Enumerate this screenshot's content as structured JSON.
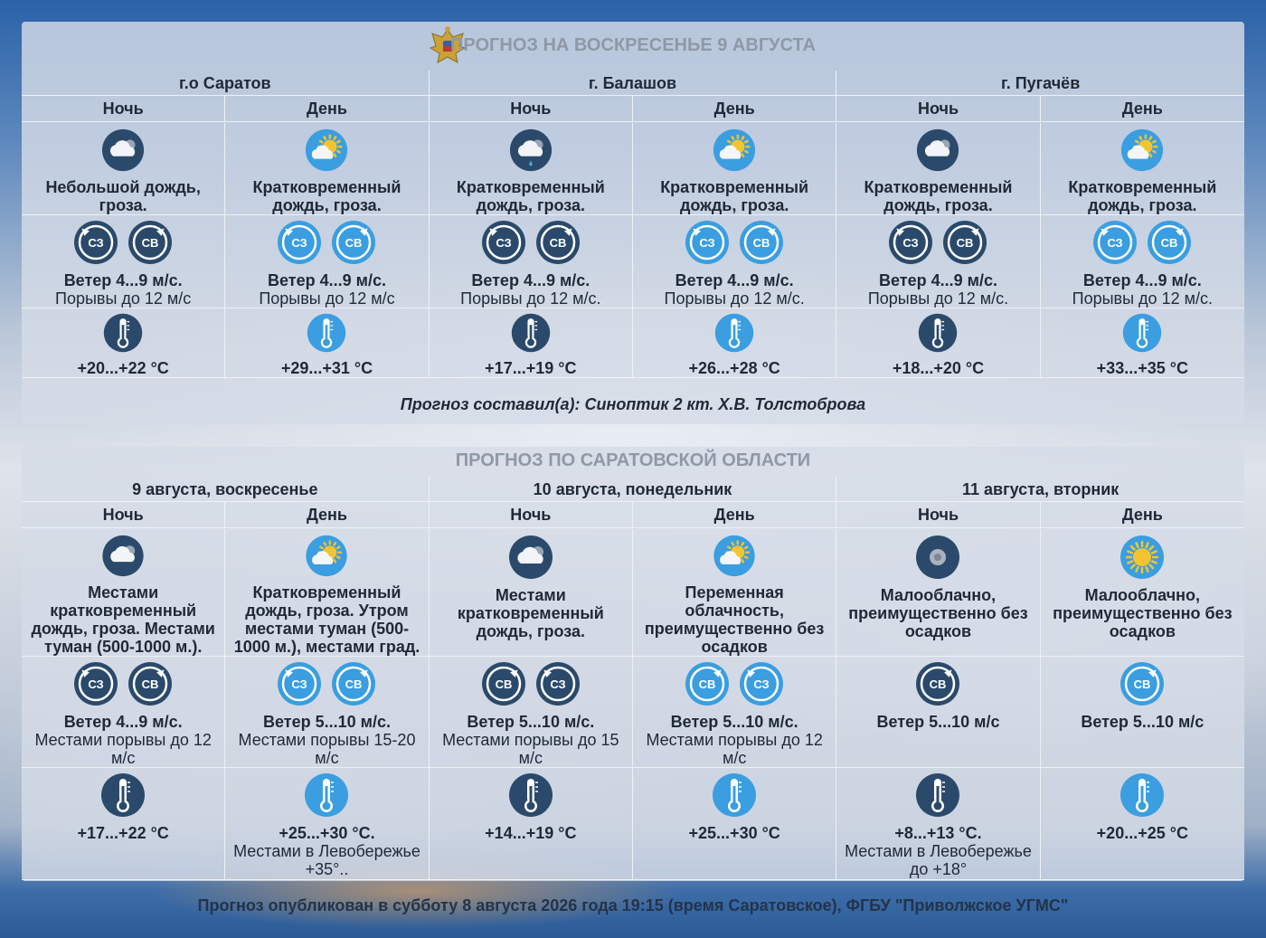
{
  "panel1": {
    "title": "ПРОГНОЗ НА ВОСКРЕСЕНЬЕ 9 АВГУСТА",
    "cities": [
      "г.о Саратов",
      "г. Балашов",
      "г. Пугачёв"
    ],
    "columns": [
      {
        "tod": "Ночь",
        "sky_icon": "cloud-night-icon",
        "desc": "Небольшой дождь, гроза.",
        "winds": [
          "СЗ",
          "СВ"
        ],
        "wind_speed": "Ветер 4...9 м/с.",
        "wind_gust": "Порывы до 12 м/с",
        "thermo": "thermometer-night-icon",
        "temp": "+20...+22 °С",
        "temp_note": ""
      },
      {
        "tod": "День",
        "sky_icon": "sun-cloud-icon",
        "desc": "Кратковременный дождь, гроза.",
        "winds": [
          "СЗ",
          "СВ"
        ],
        "wind_speed": "Ветер 4...9 м/с.",
        "wind_gust": "Порывы до 12 м/с",
        "thermo": "thermometer-day-icon",
        "temp": "+29...+31 °С",
        "temp_note": ""
      },
      {
        "tod": "Ночь",
        "sky_icon": "cloud-rain-night-icon",
        "desc": "Кратковременный дождь, гроза.",
        "winds": [
          "СЗ",
          "СВ"
        ],
        "wind_speed": "Ветер 4...9 м/с.",
        "wind_gust": "Порывы до 12 м/с.",
        "thermo": "thermometer-night-icon",
        "temp": "+17...+19 °С",
        "temp_note": ""
      },
      {
        "tod": "День",
        "sky_icon": "sun-cloud-icon",
        "desc": "Кратковременный дождь, гроза.",
        "winds": [
          "СЗ",
          "СВ"
        ],
        "wind_speed": "Ветер 4...9 м/с.",
        "wind_gust": "Порывы до 12 м/с.",
        "thermo": "thermometer-day-icon",
        "temp": "+26...+28 °С",
        "temp_note": ""
      },
      {
        "tod": "Ночь",
        "sky_icon": "cloud-night-icon",
        "desc": "Кратковременный дождь, гроза.",
        "winds": [
          "СЗ",
          "СВ"
        ],
        "wind_speed": "Ветер 4...9 м/с.",
        "wind_gust": "Порывы до 12 м/с.",
        "thermo": "thermometer-night-icon",
        "temp": "+18...+20 °С",
        "temp_note": ""
      },
      {
        "tod": "День",
        "sky_icon": "sun-cloud-icon",
        "desc": "Кратковременный дождь, гроза.",
        "winds": [
          "СЗ",
          "СВ"
        ],
        "wind_speed": "Ветер 4...9 м/с.",
        "wind_gust": "Порывы до 12 м/с.",
        "thermo": "thermometer-day-icon",
        "temp": "+33...+35 °С",
        "temp_note": ""
      }
    ],
    "author": "Прогноз составил(а): Синоптик 2 кт. Х.В. Толстоброва"
  },
  "panel2": {
    "title": "ПРОГНОЗ ПО САРАТОВСКОЙ ОБЛАСТИ",
    "dates": [
      "9 августа, воскресенье",
      "10 августа, понедельник",
      "11 августа, вторник"
    ],
    "columns": [
      {
        "tod": "Ночь",
        "sky_icon": "cloud-night-icon",
        "desc": "Местами кратковременный дождь, гроза. Местами туман (500-1000 м.).",
        "winds": [
          "СЗ",
          "СВ"
        ],
        "wind_speed": "Ветер 4...9 м/с.",
        "wind_gust": "Местами порывы до 12 м/с",
        "thermo": "thermometer-night-icon",
        "temp": "+17...+22 °С",
        "temp_note": ""
      },
      {
        "tod": "День",
        "sky_icon": "sun-cloud-icon",
        "desc": "Кратковременный дождь, гроза. Утром местами туман (500-1000 м.), местами град.",
        "winds": [
          "СЗ",
          "СВ"
        ],
        "wind_speed": "Ветер 5...10 м/с.",
        "wind_gust": "Местами порывы 15-20 м/с",
        "thermo": "thermometer-day-icon",
        "temp": "+25...+30 °С.",
        "temp_note": "Местами в Левобережье +35°.."
      },
      {
        "tod": "Ночь",
        "sky_icon": "cloud-night-icon",
        "desc": "Местами кратковременный дождь, гроза.",
        "winds": [
          "СВ",
          "СЗ"
        ],
        "wind_speed": "Ветер 5...10 м/с.",
        "wind_gust": "Местами порывы до 15 м/с",
        "thermo": "thermometer-night-icon",
        "temp": "+14...+19 °С",
        "temp_note": ""
      },
      {
        "tod": "День",
        "sky_icon": "sun-cloud-icon",
        "desc": "Переменная облачность, преимущественно без осадков",
        "winds": [
          "СВ",
          "СЗ"
        ],
        "wind_speed": "Ветер 5...10 м/с.",
        "wind_gust": "Местами порывы до 12 м/с",
        "thermo": "thermometer-day-icon",
        "temp": "+25...+30 °С",
        "temp_note": ""
      },
      {
        "tod": "Ночь",
        "sky_icon": "moon-icon",
        "desc": "Малооблачно, преимущественно без осадков",
        "winds": [
          "СВ"
        ],
        "wind_speed": "Ветер 5...10 м/с",
        "wind_gust": "",
        "thermo": "thermometer-night-icon",
        "temp": "+8...+13 °С.",
        "temp_note": "Местами в Левобережье до +18°"
      },
      {
        "tod": "День",
        "sky_icon": "sun-icon",
        "desc": "Малооблачно, преимущественно без осадков",
        "winds": [
          "СВ"
        ],
        "wind_speed": "Ветер 5...10 м/с",
        "wind_gust": "",
        "thermo": "thermometer-day-icon",
        "temp": "+20...+25 °С",
        "temp_note": ""
      }
    ]
  },
  "footer": "Прогноз опубликован в субботу 8 августа 2026 года 19:15 (время Саратовское), ФГБУ \"Приволжское УГМС\"",
  "colors": {
    "night": "#2b4a6b",
    "day": "#3a9ee0",
    "panel": "#d6dce6"
  }
}
